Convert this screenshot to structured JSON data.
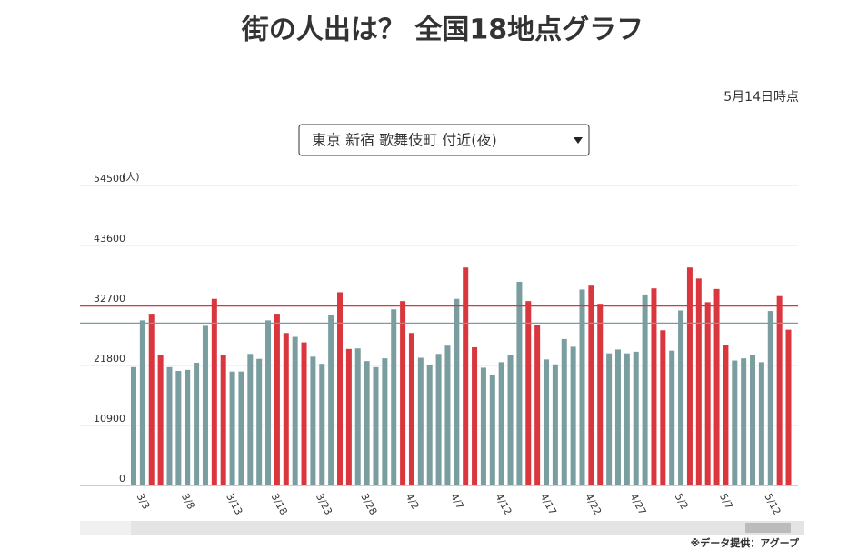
{
  "header": {
    "title": "街の人出は？ 全国18地点グラフ",
    "as_of": "5月14日時点",
    "selector": "東京 新宿 歌舞伎町 付近(夜)"
  },
  "chart_data": {
    "type": "bar",
    "y_unit": "(人)",
    "categories": [
      null,
      "3/3",
      null,
      null,
      null,
      null,
      "3/8",
      null,
      null,
      null,
      null,
      "3/13",
      null,
      null,
      null,
      null,
      "3/18",
      null,
      null,
      null,
      null,
      "3/23",
      null,
      null,
      null,
      null,
      "3/28",
      null,
      null,
      null,
      null,
      "4/2",
      null,
      null,
      null,
      null,
      "4/7",
      null,
      null,
      null,
      null,
      "4/12",
      null,
      null,
      null,
      null,
      "4/17",
      null,
      null,
      null,
      null,
      "4/22",
      null,
      null,
      null,
      null,
      "4/27",
      null,
      null,
      null,
      null,
      "5/2",
      null,
      null,
      null,
      null,
      "5/7",
      null,
      null,
      null,
      null,
      "5/12",
      null,
      null
    ],
    "values": [
      21500,
      30000,
      31200,
      23700,
      21500,
      20800,
      21000,
      22300,
      29000,
      33900,
      23700,
      20700,
      20700,
      23900,
      23000,
      30000,
      31200,
      27700,
      27000,
      26000,
      23400,
      22100,
      30900,
      35100,
      24800,
      24900,
      22600,
      21500,
      23100,
      32000,
      33500,
      27700,
      23200,
      21800,
      23900,
      25400,
      33900,
      39600,
      25100,
      21400,
      20100,
      22400,
      23700,
      37000,
      33500,
      29200,
      22900,
      22000,
      26600,
      25200,
      35600,
      36300,
      33000,
      24000,
      24700,
      24000,
      24300,
      34700,
      35800,
      28200,
      24500,
      31800,
      39600,
      37600,
      33300,
      35700,
      25500,
      22700,
      23100,
      23700,
      22400,
      31700,
      34400,
      28300
    ],
    "bar_colors": [
      "#7a9e9f",
      "#7a9e9f",
      "#d9363e",
      "#d9363e",
      "#7a9e9f",
      "#7a9e9f",
      "#7a9e9f",
      "#7a9e9f",
      "#7a9e9f",
      "#d9363e",
      "#d9363e",
      "#7a9e9f",
      "#7a9e9f",
      "#7a9e9f",
      "#7a9e9f",
      "#7a9e9f",
      "#d9363e",
      "#d9363e",
      "#7a9e9f",
      "#d9363e",
      "#7a9e9f",
      "#7a9e9f",
      "#7a9e9f",
      "#d9363e",
      "#d9363e",
      "#7a9e9f",
      "#7a9e9f",
      "#7a9e9f",
      "#7a9e9f",
      "#7a9e9f",
      "#d9363e",
      "#d9363e",
      "#7a9e9f",
      "#7a9e9f",
      "#7a9e9f",
      "#7a9e9f",
      "#7a9e9f",
      "#d9363e",
      "#d9363e",
      "#7a9e9f",
      "#7a9e9f",
      "#7a9e9f",
      "#7a9e9f",
      "#7a9e9f",
      "#d9363e",
      "#d9363e",
      "#7a9e9f",
      "#7a9e9f",
      "#7a9e9f",
      "#7a9e9f",
      "#7a9e9f",
      "#d9363e",
      "#d9363e",
      "#7a9e9f",
      "#7a9e9f",
      "#7a9e9f",
      "#7a9e9f",
      "#7a9e9f",
      "#d9363e",
      "#d9363e",
      "#7a9e9f",
      "#7a9e9f",
      "#d9363e",
      "#d9363e",
      "#d9363e",
      "#d9363e",
      "#d9363e",
      "#7a9e9f",
      "#7a9e9f",
      "#7a9e9f",
      "#7a9e9f",
      "#7a9e9f",
      "#d9363e",
      "#d9363e"
    ],
    "reference_lines": [
      {
        "value": 32600,
        "color": "#d9363e"
      },
      {
        "value": 29500,
        "color": "#7a9e9f"
      }
    ],
    "ylim": [
      0,
      54500
    ],
    "yticks": [
      0,
      10900,
      21800,
      32700,
      43600,
      54500
    ],
    "grid": true,
    "source": "※データ提供：アグープ"
  }
}
